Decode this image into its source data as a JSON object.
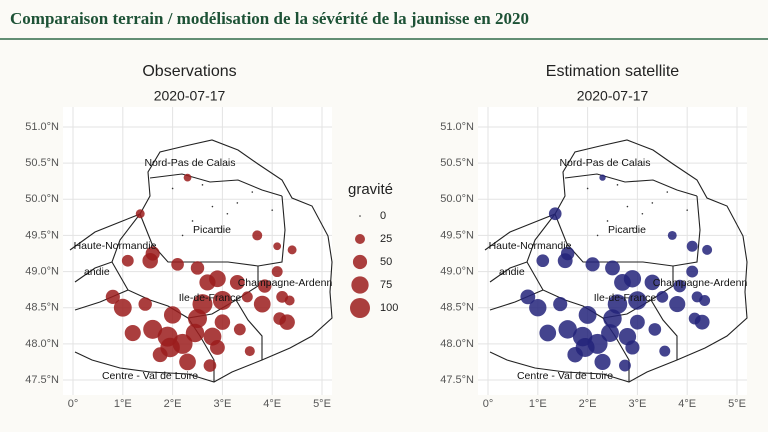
{
  "header": {
    "title": "Comparaison terrain / modélisation de la sévérité de la jaunisse en 2020"
  },
  "chart_data": [
    {
      "type": "scatter",
      "title": "Observations",
      "subtitle": "2020-07-17",
      "color": "#9b1c1c",
      "regions": [
        "Nord-Pas de Calais",
        "Picardie",
        "Haute-Normandie",
        "andie",
        "Ile-de-France",
        "Champagne-Ardenn",
        "Centre - Val de Loire"
      ],
      "xlim": [
        0,
        5
      ],
      "ylim": [
        47.5,
        51
      ],
      "xticks": [
        {
          "value": 0,
          "label": "0°"
        },
        {
          "value": 1,
          "label": "1°E"
        },
        {
          "value": 2,
          "label": "2°E"
        },
        {
          "value": 3,
          "label": "3°E"
        },
        {
          "value": 4,
          "label": "4°E"
        },
        {
          "value": 5,
          "label": "5°E"
        }
      ],
      "yticks": [
        {
          "value": 47.5,
          "label": "47.5°N"
        },
        {
          "value": 48,
          "label": "48.0°N"
        },
        {
          "value": 48.5,
          "label": "48.5°N"
        },
        {
          "value": 49,
          "label": "49.0°N"
        },
        {
          "value": 49.5,
          "label": "49.5°N"
        },
        {
          "value": 50,
          "label": "50.0°N"
        },
        {
          "value": 50.5,
          "label": "50.5°N"
        },
        {
          "value": 51,
          "label": "51.0°N"
        }
      ],
      "legend": {
        "title": "gravité",
        "values": [
          0,
          25,
          50,
          75,
          100
        ]
      },
      "x": [
        2.3,
        1.35,
        1.55,
        1.6,
        1.1,
        2.1,
        2.5,
        3.7,
        4.1,
        4.4,
        4.1,
        3.3,
        2.9,
        2.7,
        3.0,
        2.6,
        3.5,
        3.85,
        4.2,
        4.35,
        3.8,
        4.3,
        4.15,
        0.8,
        1.0,
        1.45,
        1.2,
        1.6,
        1.9,
        2.2,
        2.45,
        1.75,
        2.3,
        2.0,
        2.8,
        2.9,
        2.75,
        3.0,
        3.55,
        2.5,
        1.95,
        3.35,
        2.0,
        2.6,
        2.8,
        3.1,
        2.4,
        2.9,
        3.3,
        2.2,
        4.0,
        3.6
      ],
      "y": [
        50.3,
        49.8,
        49.15,
        49.25,
        49.15,
        49.1,
        49.05,
        49.5,
        49.35,
        49.3,
        49.0,
        48.85,
        48.9,
        48.85,
        48.6,
        48.55,
        48.65,
        48.8,
        48.65,
        48.6,
        48.55,
        48.3,
        48.35,
        48.65,
        48.5,
        48.55,
        48.15,
        48.2,
        48.1,
        48.0,
        48.15,
        47.85,
        47.75,
        48.4,
        48.1,
        47.95,
        47.7,
        48.3,
        47.9,
        48.35,
        47.95,
        48.2,
        50.15,
        50.2,
        49.9,
        49.8,
        49.7,
        49.6,
        49.95,
        49.5,
        49.85,
        50.1
      ],
      "values": [
        15,
        20,
        60,
        50,
        35,
        40,
        45,
        25,
        15,
        20,
        30,
        55,
        70,
        65,
        90,
        100,
        30,
        45,
        35,
        25,
        70,
        60,
        40,
        50,
        80,
        45,
        65,
        90,
        100,
        100,
        85,
        55,
        70,
        75,
        80,
        55,
        40,
        60,
        25,
        90,
        95,
        35,
        0,
        0,
        0,
        0,
        0,
        0,
        0,
        0,
        0,
        0
      ]
    },
    {
      "type": "scatter",
      "title": "Estimation satellite",
      "subtitle": "2020-07-17",
      "color": "#23237a",
      "regions": [
        "Nord-Pas de Calais",
        "Picardie",
        "Haute-Normandie",
        "andie",
        "Ile-de-France",
        "Champagne-Ardenn",
        "Centre - Val de Loire"
      ],
      "xlim": [
        0,
        5
      ],
      "ylim": [
        47.5,
        51
      ],
      "xticks": [
        {
          "value": 0,
          "label": "0°"
        },
        {
          "value": 1,
          "label": "1°E"
        },
        {
          "value": 2,
          "label": "2°E"
        },
        {
          "value": 3,
          "label": "3°E"
        },
        {
          "value": 4,
          "label": "4°E"
        },
        {
          "value": 5,
          "label": "5°E"
        }
      ],
      "yticks": [
        {
          "value": 47.5,
          "label": "47.5°N"
        },
        {
          "value": 48,
          "label": "48.0°N"
        },
        {
          "value": 48.5,
          "label": "48.5°N"
        },
        {
          "value": 49,
          "label": "49.0°N"
        },
        {
          "value": 49.5,
          "label": "49.5°N"
        },
        {
          "value": 50,
          "label": "50.0°N"
        },
        {
          "value": 50.5,
          "label": "50.5°N"
        },
        {
          "value": 51,
          "label": "51.0°N"
        }
      ],
      "x": [
        2.3,
        1.35,
        1.55,
        1.6,
        1.1,
        2.1,
        2.5,
        3.7,
        4.1,
        4.4,
        4.1,
        3.3,
        2.9,
        2.7,
        3.0,
        2.6,
        3.5,
        3.85,
        4.2,
        4.35,
        3.8,
        4.3,
        4.15,
        0.8,
        1.0,
        1.45,
        1.2,
        1.6,
        1.9,
        2.2,
        2.45,
        1.75,
        2.3,
        2.0,
        2.8,
        2.9,
        2.75,
        3.0,
        3.55,
        2.5,
        1.95,
        3.35,
        2.0,
        2.6,
        2.8,
        3.1,
        2.4,
        2.9,
        3.3,
        2.2,
        4.0,
        3.6
      ],
      "y": [
        50.3,
        49.8,
        49.15,
        49.25,
        49.15,
        49.1,
        49.05,
        49.5,
        49.35,
        49.3,
        49.0,
        48.85,
        48.9,
        48.85,
        48.6,
        48.55,
        48.65,
        48.8,
        48.65,
        48.6,
        48.55,
        48.3,
        48.35,
        48.65,
        48.5,
        48.55,
        48.15,
        48.2,
        48.1,
        48.0,
        48.15,
        47.85,
        47.75,
        48.4,
        48.1,
        47.95,
        47.7,
        48.3,
        47.9,
        48.35,
        47.95,
        48.2,
        50.15,
        50.2,
        49.9,
        49.8,
        49.7,
        49.6,
        49.95,
        49.5,
        49.85,
        50.1
      ],
      "values": [
        10,
        40,
        55,
        45,
        40,
        50,
        55,
        20,
        30,
        25,
        35,
        60,
        75,
        70,
        85,
        95,
        35,
        40,
        30,
        30,
        65,
        55,
        35,
        55,
        75,
        50,
        70,
        85,
        95,
        100,
        80,
        60,
        65,
        80,
        75,
        50,
        35,
        55,
        30,
        85,
        90,
        40,
        0,
        0,
        0,
        0,
        0,
        0,
        0,
        0,
        0,
        0
      ]
    }
  ]
}
